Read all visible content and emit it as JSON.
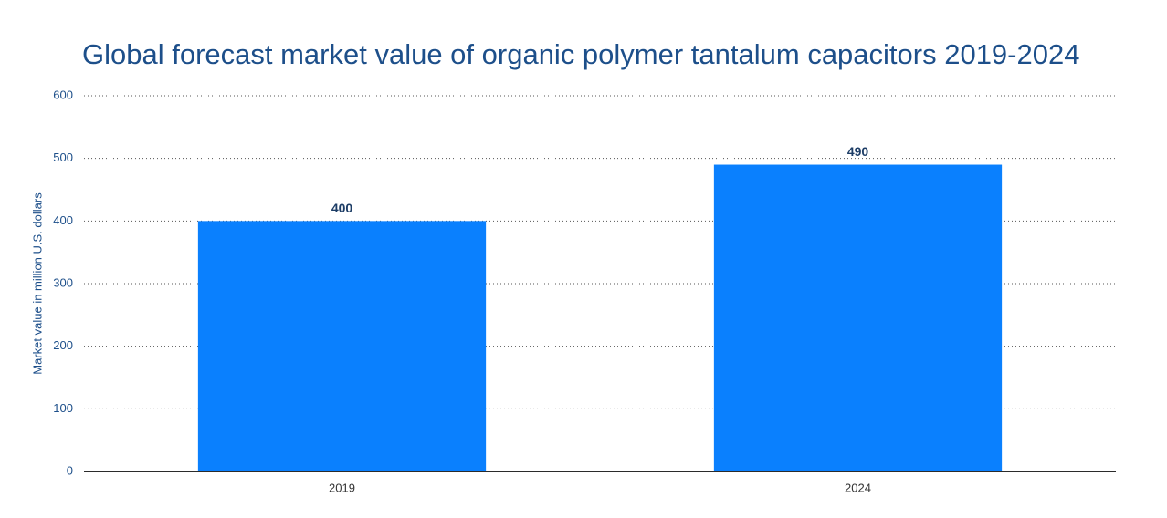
{
  "chart_data": {
    "type": "bar",
    "title": "Global forecast market value of organic polymer tantalum capacitors 2019-2024",
    "y_label": "Market value in million U.S. dollars",
    "categories": [
      "2019",
      "2024"
    ],
    "values": [
      400,
      490
    ],
    "color": "#0a80fe",
    "ylim": [
      0,
      600
    ],
    "yticks": [
      0,
      100,
      200,
      300,
      400,
      500,
      600
    ],
    "grid": true
  }
}
